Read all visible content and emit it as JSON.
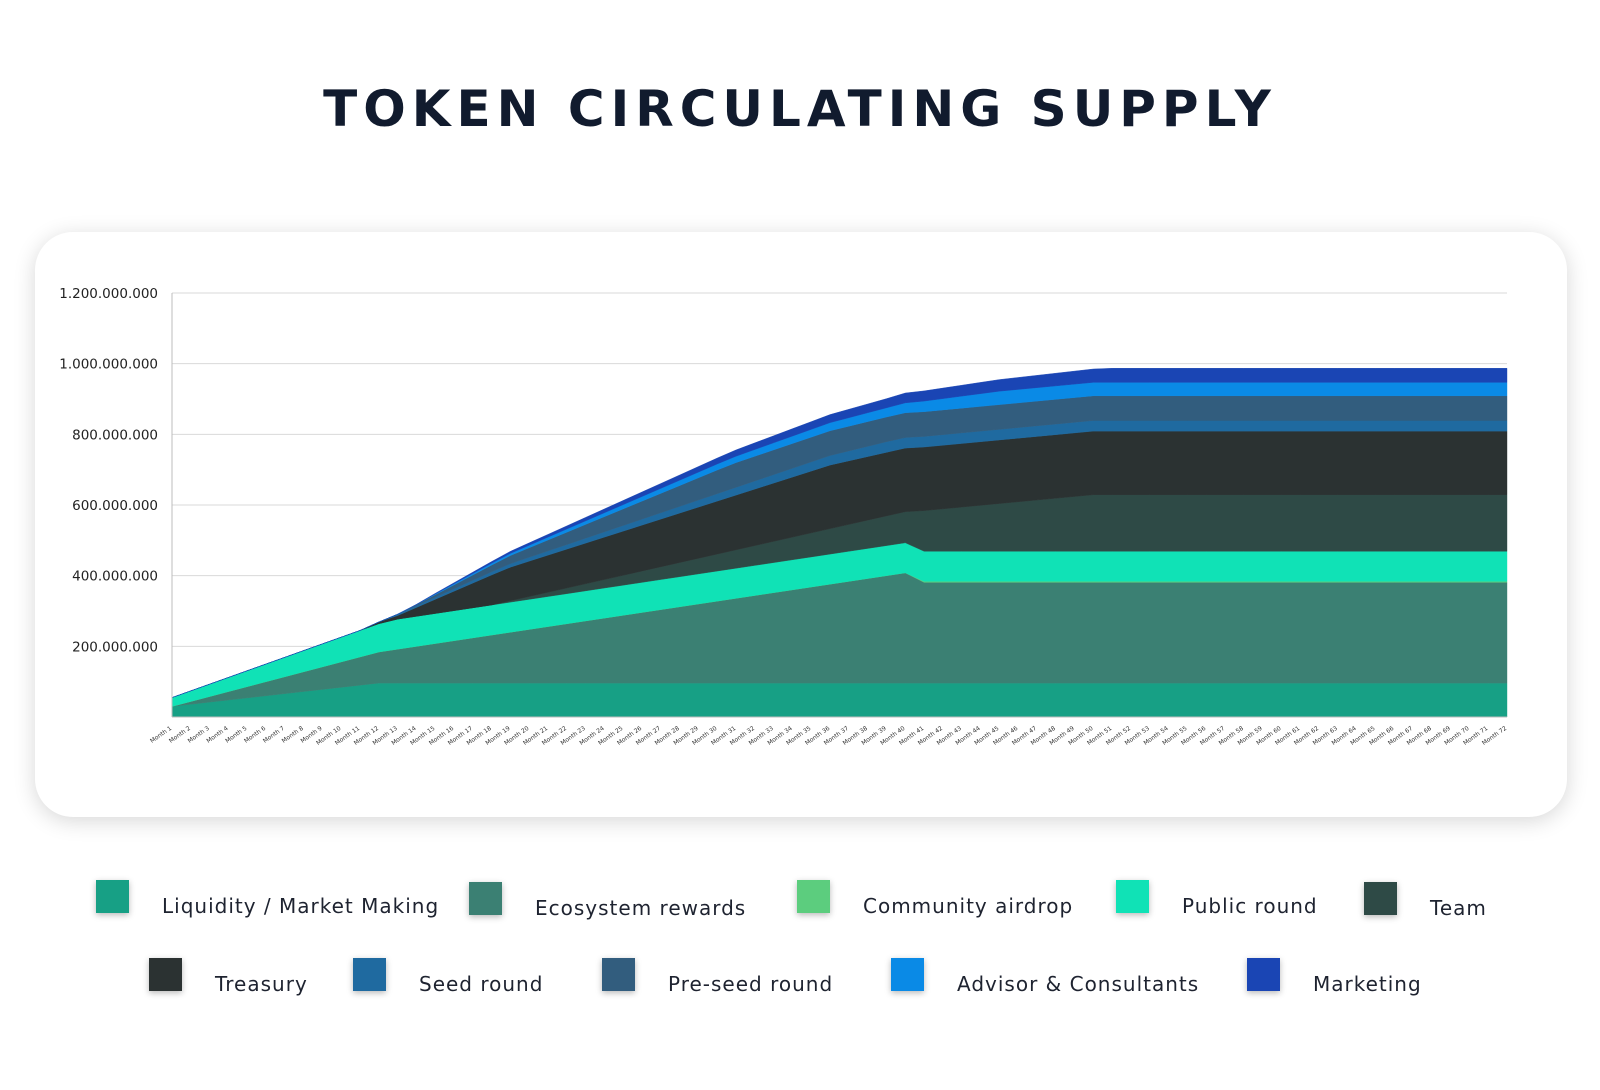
{
  "chart_data": {
    "type": "area",
    "stacked": true,
    "title": "TOKEN CIRCULATING SUPPLY",
    "xlabel": "",
    "ylabel": "",
    "ylim": [
      0,
      1200000000
    ],
    "yticks": [
      200000000,
      400000000,
      600000000,
      800000000,
      1000000000,
      1200000000
    ],
    "ytick_labels": [
      "200.000.000",
      "400.000.000",
      "600.000.000",
      "800.000.000",
      "1.000.000.000",
      "1.200.000.000"
    ],
    "grid": true,
    "legend_position": "bottom",
    "categories": [
      "Month 1",
      "Month 2",
      "Month 3",
      "Month 4",
      "Month 5",
      "Month 6",
      "Month 7",
      "Month 8",
      "Month 9",
      "Month 10",
      "Month 11",
      "Month 12",
      "Month 13",
      "Month 14",
      "Month 15",
      "Month 16",
      "Month 17",
      "Month 18",
      "Month 19",
      "Month 20",
      "Month 21",
      "Month 22",
      "Month 23",
      "Month 24",
      "Month 25",
      "Month 26",
      "Month 27",
      "Month 28",
      "Month 29",
      "Month 30",
      "Month 31",
      "Month 32",
      "Month 33",
      "Month 34",
      "Month 35",
      "Month 36",
      "Month 37",
      "Month 38",
      "Month 39",
      "Month 40",
      "Month 41",
      "Month 42",
      "Month 43",
      "Month 44",
      "Month 45",
      "Month 46",
      "Month 47",
      "Month 48",
      "Month 49",
      "Month 50",
      "Month 51",
      "Month 52",
      "Month 53",
      "Month 54",
      "Month 55",
      "Month 56",
      "Month 57",
      "Month 58",
      "Month 59",
      "Month 60",
      "Month 61",
      "Month 62",
      "Month 63",
      "Month 64",
      "Month 65",
      "Month 66",
      "Month 67",
      "Month 68",
      "Month 69",
      "Month 70",
      "Month 71",
      "Month 72"
    ],
    "series": [
      {
        "name": "Liquidity / Market Making",
        "color": "#17a085",
        "values": [
          30000000,
          36000000,
          42000000,
          48000000,
          54000000,
          60000000,
          66000000,
          72000000,
          78000000,
          84000000,
          90000000,
          96000000,
          96000000,
          96000000,
          96000000,
          96000000,
          96000000,
          96000000,
          96000000,
          96000000,
          96000000,
          96000000,
          96000000,
          96000000,
          96000000,
          96000000,
          96000000,
          96000000,
          96000000,
          96000000,
          96000000,
          96000000,
          96000000,
          96000000,
          96000000,
          96000000,
          96000000,
          96000000,
          96000000,
          96000000,
          96000000,
          96000000,
          96000000,
          96000000,
          96000000,
          96000000,
          96000000,
          96000000,
          96000000,
          96000000,
          96000000,
          96000000,
          96000000,
          96000000,
          96000000,
          96000000,
          96000000,
          96000000,
          96000000,
          96000000,
          96000000,
          96000000,
          96000000,
          96000000,
          96000000,
          96000000,
          96000000,
          96000000,
          96000000,
          96000000,
          96000000,
          96000000
        ]
      },
      {
        "name": "Ecosystem rewards",
        "color": "#3b8073",
        "values": [
          0,
          8000000,
          16000000,
          24000000,
          32000000,
          40000000,
          48000000,
          56000000,
          64000000,
          72000000,
          80000000,
          88000000,
          96000000,
          104000000,
          112000000,
          120000000,
          128000000,
          136000000,
          144000000,
          152000000,
          160000000,
          168000000,
          176000000,
          184000000,
          192000000,
          200000000,
          208000000,
          216000000,
          224000000,
          232000000,
          240000000,
          248000000,
          256000000,
          264000000,
          272000000,
          280000000,
          288000000,
          296000000,
          304000000,
          312000000,
          285000000,
          285000000,
          285000000,
          285000000,
          285000000,
          285000000,
          285000000,
          285000000,
          285000000,
          285000000,
          285000000,
          285000000,
          285000000,
          285000000,
          285000000,
          285000000,
          285000000,
          285000000,
          285000000,
          285000000,
          285000000,
          285000000,
          285000000,
          285000000,
          285000000,
          285000000,
          285000000,
          285000000,
          285000000,
          285000000,
          285000000,
          285000000
        ]
      },
      {
        "name": "Community airdrop",
        "color": "#5ccd7e",
        "values": [
          0,
          0,
          0,
          0,
          0,
          0,
          0,
          0,
          0,
          0,
          0,
          0,
          0,
          0,
          0,
          0,
          0,
          0,
          0,
          0,
          0,
          0,
          0,
          0,
          0,
          0,
          0,
          0,
          0,
          0,
          0,
          0,
          0,
          0,
          0,
          0,
          0,
          0,
          0,
          0,
          3000000,
          3000000,
          3000000,
          3000000,
          3000000,
          3000000,
          3000000,
          3000000,
          3000000,
          3000000,
          3000000,
          3000000,
          3000000,
          3000000,
          3000000,
          3000000,
          3000000,
          3000000,
          3000000,
          3000000,
          3000000,
          3000000,
          3000000,
          3000000,
          3000000,
          3000000,
          3000000,
          3000000,
          3000000,
          3000000,
          3000000,
          3000000
        ]
      },
      {
        "name": "Public round",
        "color": "#10e2b6",
        "values": [
          25000000,
          30000000,
          35000000,
          40000000,
          45000000,
          50000000,
          55000000,
          60000000,
          65000000,
          70000000,
          75000000,
          80000000,
          85000000,
          85000000,
          85000000,
          85000000,
          85000000,
          85000000,
          85000000,
          85000000,
          85000000,
          85000000,
          85000000,
          85000000,
          85000000,
          85000000,
          85000000,
          85000000,
          85000000,
          85000000,
          85000000,
          85000000,
          85000000,
          85000000,
          85000000,
          85000000,
          85000000,
          85000000,
          85000000,
          85000000,
          85000000,
          85000000,
          85000000,
          85000000,
          85000000,
          85000000,
          85000000,
          85000000,
          85000000,
          85000000,
          85000000,
          85000000,
          85000000,
          85000000,
          85000000,
          85000000,
          85000000,
          85000000,
          85000000,
          85000000,
          85000000,
          85000000,
          85000000,
          85000000,
          85000000,
          85000000,
          85000000,
          85000000,
          85000000,
          85000000,
          85000000,
          85000000
        ]
      },
      {
        "name": "Team",
        "color": "#2e4a46",
        "values": [
          0,
          0,
          0,
          0,
          0,
          0,
          0,
          0,
          0,
          0,
          0,
          0,
          0,
          0,
          0,
          0,
          0,
          0,
          4000000,
          8000000,
          12000000,
          16000000,
          20000000,
          24000000,
          28000000,
          32000000,
          36000000,
          40000000,
          44000000,
          48000000,
          52000000,
          56000000,
          60000000,
          64000000,
          68000000,
          72000000,
          76000000,
          80000000,
          84000000,
          88000000,
          115000000,
          120000000,
          125000000,
          130000000,
          135000000,
          140000000,
          145000000,
          150000000,
          155000000,
          160000000,
          160000000,
          160000000,
          160000000,
          160000000,
          160000000,
          160000000,
          160000000,
          160000000,
          160000000,
          160000000,
          160000000,
          160000000,
          160000000,
          160000000,
          160000000,
          160000000,
          160000000,
          160000000,
          160000000,
          160000000,
          160000000,
          160000000
        ]
      },
      {
        "name": "Treasury",
        "color": "#2b3232",
        "values": [
          0,
          0,
          0,
          0,
          0,
          0,
          0,
          0,
          0,
          0,
          0,
          5000000,
          10000000,
          25000000,
          40000000,
          55000000,
          70000000,
          85000000,
          95000000,
          100000000,
          105000000,
          110000000,
          115000000,
          120000000,
          125000000,
          130000000,
          135000000,
          140000000,
          145000000,
          150000000,
          155000000,
          160000000,
          165000000,
          170000000,
          175000000,
          180000000,
          180000000,
          180000000,
          180000000,
          180000000,
          180000000,
          180000000,
          180000000,
          180000000,
          180000000,
          180000000,
          180000000,
          180000000,
          180000000,
          180000000,
          180000000,
          180000000,
          180000000,
          180000000,
          180000000,
          180000000,
          180000000,
          180000000,
          180000000,
          180000000,
          180000000,
          180000000,
          180000000,
          180000000,
          180000000,
          180000000,
          180000000,
          180000000,
          180000000,
          180000000,
          180000000,
          180000000
        ]
      },
      {
        "name": "Seed round",
        "color": "#1f6aa0",
        "values": [
          0,
          0,
          0,
          0,
          0,
          0,
          0,
          0,
          0,
          0,
          0,
          0,
          4000000,
          5000000,
          6000000,
          7000000,
          8000000,
          9000000,
          10000000,
          11000000,
          12000000,
          13000000,
          14000000,
          15000000,
          16000000,
          17000000,
          18000000,
          19000000,
          20000000,
          21000000,
          22000000,
          23000000,
          24000000,
          25000000,
          26000000,
          27000000,
          28000000,
          29000000,
          30000000,
          30000000,
          30000000,
          30000000,
          30000000,
          30000000,
          30000000,
          30000000,
          30000000,
          30000000,
          30000000,
          30000000,
          30000000,
          30000000,
          30000000,
          30000000,
          30000000,
          30000000,
          30000000,
          30000000,
          30000000,
          30000000,
          30000000,
          30000000,
          30000000,
          30000000,
          30000000,
          30000000,
          30000000,
          30000000,
          30000000,
          30000000,
          30000000,
          30000000
        ]
      },
      {
        "name": "Pre-seed round",
        "color": "#325d7e",
        "values": [
          0,
          0,
          0,
          0,
          0,
          0,
          0,
          0,
          0,
          0,
          0,
          0,
          0,
          3000000,
          7000000,
          11000000,
          15000000,
          19000000,
          23000000,
          27000000,
          31000000,
          35000000,
          39000000,
          43000000,
          47000000,
          51000000,
          55000000,
          59000000,
          63000000,
          67000000,
          70000000,
          70000000,
          70000000,
          70000000,
          70000000,
          70000000,
          70000000,
          70000000,
          70000000,
          70000000,
          70000000,
          70000000,
          70000000,
          70000000,
          70000000,
          70000000,
          70000000,
          70000000,
          70000000,
          70000000,
          70000000,
          70000000,
          70000000,
          70000000,
          70000000,
          70000000,
          70000000,
          70000000,
          70000000,
          70000000,
          70000000,
          70000000,
          70000000,
          70000000,
          70000000,
          70000000,
          70000000,
          70000000,
          70000000,
          70000000,
          70000000,
          70000000
        ]
      },
      {
        "name": "Advisor & Consultants",
        "color": "#0a8ae6",
        "values": [
          0,
          0,
          0,
          0,
          0,
          0,
          0,
          0,
          0,
          0,
          0,
          0,
          0,
          0,
          2000000,
          3000000,
          4000000,
          5000000,
          6000000,
          7000000,
          8000000,
          9000000,
          10000000,
          11000000,
          12000000,
          13000000,
          14000000,
          15000000,
          16000000,
          17000000,
          18000000,
          19000000,
          20000000,
          21000000,
          22000000,
          23000000,
          24000000,
          25000000,
          26000000,
          28000000,
          30000000,
          32000000,
          34000000,
          36000000,
          38000000,
          38000000,
          38000000,
          38000000,
          38000000,
          38000000,
          38000000,
          38000000,
          38000000,
          38000000,
          38000000,
          38000000,
          38000000,
          38000000,
          38000000,
          38000000,
          38000000,
          38000000,
          38000000,
          38000000,
          38000000,
          38000000,
          38000000,
          38000000,
          38000000,
          38000000,
          38000000,
          38000000
        ]
      },
      {
        "name": "Marketing",
        "color": "#1a45b4",
        "values": [
          0,
          0,
          0,
          0,
          0,
          0,
          0,
          0,
          0,
          0,
          0,
          0,
          0,
          1000000,
          2000000,
          3000000,
          4000000,
          5000000,
          6000000,
          7000000,
          8000000,
          9000000,
          10000000,
          11000000,
          12000000,
          13000000,
          14000000,
          15000000,
          16000000,
          17000000,
          18000000,
          19000000,
          20000000,
          21000000,
          22000000,
          23000000,
          24000000,
          25000000,
          26000000,
          28000000,
          29000000,
          30000000,
          31000000,
          32000000,
          33000000,
          34000000,
          35000000,
          36000000,
          37000000,
          38000000,
          40000000,
          40000000,
          40000000,
          40000000,
          40000000,
          40000000,
          40000000,
          40000000,
          40000000,
          40000000,
          40000000,
          40000000,
          40000000,
          40000000,
          40000000,
          40000000,
          40000000,
          40000000,
          40000000,
          40000000,
          40000000,
          40000000
        ]
      }
    ]
  }
}
